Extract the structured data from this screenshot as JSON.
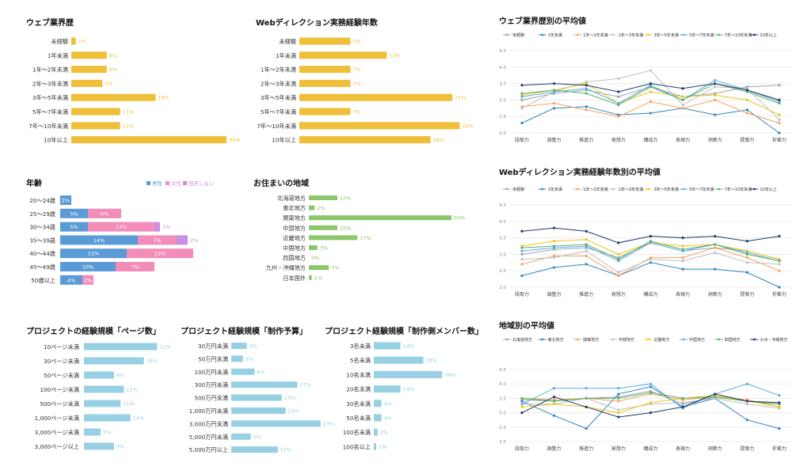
{
  "colors": {
    "gold": "#EFBF3A",
    "green": "#8CC66B",
    "lightblue": "#96D0E2",
    "blue": "#5B9BD5",
    "pink": "#F28CB9",
    "purple": "#C98FE3"
  },
  "left_charts": [
    {
      "id": "web-exp",
      "title": "ウェブ業界歴",
      "color": "#EFBF3A",
      "chart_data": {
        "type": "bar",
        "categories": [
          "未経験",
          "1年未満",
          "1年〜2年未満",
          "2年〜3年未満",
          "3年〜5年未満",
          "5年〜7年未満",
          "7年〜10年未満",
          "10年以上"
        ],
        "values": [
          1,
          8,
          8,
          7,
          19,
          11,
          11,
          35
        ]
      }
    },
    {
      "id": "webdir-exp",
      "title": "Webディレクション実務経験年数",
      "color": "#EFBF3A",
      "chart_data": {
        "type": "bar",
        "categories": [
          "未経験",
          "1年未満",
          "1年〜2年未満",
          "2年〜3年未満",
          "3年〜5年未満",
          "5年〜7年未満",
          "7年〜10年未満",
          "10年以上"
        ],
        "values": [
          7,
          12,
          7,
          7,
          21,
          7,
          22,
          18
        ]
      }
    },
    {
      "id": "region",
      "title": "お住まいの地域",
      "color": "#8CC66B",
      "chart_data": {
        "type": "bar",
        "categories": [
          "北海道地方",
          "東北地方",
          "関東地方",
          "中部地方",
          "近畿地方",
          "中国地方",
          "四国地方",
          "九州・沖縄地方",
          "日本国外"
        ],
        "values": [
          10,
          2,
          50,
          10,
          17,
          3,
          0,
          7,
          1
        ]
      }
    },
    {
      "id": "pages",
      "title": "プロジェクトの経験規模「ページ数」",
      "color": "#96D0E2",
      "chart_data": {
        "type": "bar",
        "categories": [
          "10ページ未満",
          "30ページ未満",
          "50ページ未満",
          "100ページ未満",
          "500ページ未満",
          "1,000ページ未満",
          "3,000ページ未満",
          "3,000ページ以上"
        ],
        "values": [
          22,
          18,
          9,
          12,
          11,
          14,
          5,
          9
        ]
      }
    },
    {
      "id": "budget",
      "title": "プロジェクト経験規模「制作予算」",
      "color": "#96D0E2",
      "chart_data": {
        "type": "bar",
        "categories": [
          "30万円未満",
          "50万円未満",
          "100万円未満",
          "300万円未満",
          "500万円未満",
          "1,000万円未満",
          "3,000万円未満",
          "5,000万円未満",
          "5,000万円以上"
        ],
        "values": [
          4,
          3,
          6,
          17,
          13,
          14,
          23,
          5,
          12
        ]
      }
    },
    {
      "id": "members",
      "title": "プロジェクト経験規模「制作側メンバー数」",
      "color": "#96D0E2",
      "chart_data": {
        "type": "bar",
        "categories": [
          "3名未満",
          "5名未満",
          "10名未満",
          "20名未満",
          "30名未満",
          "50名未満",
          "100名未満",
          "100名以上"
        ],
        "values": [
          14,
          26,
          36,
          14,
          4,
          4,
          2,
          1
        ]
      }
    }
  ],
  "age_chart": {
    "title": "年齢",
    "legend": [
      "男性",
      "女性",
      "回答しない"
    ],
    "legend_colors": [
      "#5B9BD5",
      "#F28CB9",
      "#C98FE3"
    ],
    "chart_data": {
      "type": "bar",
      "stacked": true,
      "categories": [
        "20〜24歳",
        "25〜29歳",
        "30〜34歳",
        "35〜39歳",
        "40〜44歳",
        "45〜49歳",
        "50歳以上"
      ],
      "series": [
        {
          "name": "男性",
          "values": [
            2,
            5,
            5,
            14,
            12,
            10,
            4
          ]
        },
        {
          "name": "女性",
          "values": [
            0,
            6,
            12,
            7,
            12,
            7,
            2
          ]
        },
        {
          "name": "回答しない",
          "values": [
            0,
            0,
            1,
            2,
            0,
            0,
            0
          ]
        }
      ]
    }
  },
  "line_charts": [
    {
      "id": "avg-web",
      "title": "ウェブ業界歴別の平均値",
      "chart_data": {
        "type": "line",
        "categories": [
          "段取力",
          "調整力",
          "推進力",
          "発想力",
          "構成力",
          "表現力",
          "洞察力",
          "提案力",
          "折衝力"
        ],
        "ylim": [
          2.0,
          4.5
        ],
        "yticks": [
          "4.5",
          "4.0",
          "3.5",
          "3.0",
          "2.5",
          "2.0"
        ],
        "series": [
          {
            "name": "未経験",
            "color": "#9CA3AF",
            "values": [
              3.0,
              3.2,
              3.3,
              3.1,
              3.4,
              3.1,
              3.2,
              3.4,
              3.45
            ]
          },
          {
            "name": "1年未満",
            "color": "#2E86C1",
            "values": [
              2.3,
              2.75,
              2.8,
              2.55,
              2.6,
              2.75,
              2.55,
              2.7,
              2.0
            ]
          },
          {
            "name": "1年〜2年未満",
            "color": "#F5A25D",
            "values": [
              2.8,
              2.9,
              2.7,
              2.5,
              2.95,
              2.75,
              3.0,
              2.6,
              2.3
            ]
          },
          {
            "name": "2年〜3年未満",
            "color": "#C0C0C0",
            "values": [
              2.75,
              3.25,
              3.55,
              3.65,
              3.9,
              2.85,
              3.4,
              3.35,
              2.4
            ]
          },
          {
            "name": "3年〜5年未満",
            "color": "#F0C419",
            "values": [
              3.15,
              3.3,
              3.5,
              2.9,
              3.25,
              3.1,
              3.15,
              3.0,
              2.55
            ]
          },
          {
            "name": "5年〜7年未満",
            "color": "#5DADE2",
            "values": [
              3.1,
              3.25,
              3.35,
              2.9,
              3.45,
              3.0,
              3.6,
              3.3,
              2.95
            ]
          },
          {
            "name": "7年〜10年未満",
            "color": "#58B368",
            "values": [
              3.2,
              3.3,
              3.2,
              2.85,
              3.4,
              3.0,
              3.5,
              3.25,
              2.9
            ]
          },
          {
            "name": "10年以上",
            "color": "#1F3A68",
            "values": [
              3.45,
              3.5,
              3.45,
              3.25,
              3.5,
              3.35,
              3.5,
              3.3,
              3.0
            ]
          }
        ]
      }
    },
    {
      "id": "avg-webdir",
      "title": "Webディレクション実務経験年数別の平均値",
      "chart_data": {
        "type": "line",
        "categories": [
          "段取力",
          "調整力",
          "推進力",
          "発想力",
          "構成力",
          "表現力",
          "洞察力",
          "提案力",
          "折衝力"
        ],
        "ylim": [
          2.0,
          4.5
        ],
        "yticks": [
          "4.5",
          "4.0",
          "3.5",
          "3.0",
          "2.5",
          "2.0"
        ],
        "series": [
          {
            "name": "未経験",
            "color": "#9CA3AF",
            "values": [
              3.0,
              3.15,
              3.2,
              2.9,
              3.35,
              3.1,
              3.2,
              3.1,
              2.85
            ]
          },
          {
            "name": "1年未満",
            "color": "#2E86C1",
            "values": [
              2.35,
              2.6,
              2.7,
              2.35,
              2.75,
              2.55,
              2.55,
              2.45,
              2.0
            ]
          },
          {
            "name": "1年〜2年未満",
            "color": "#F5A25D",
            "values": [
              2.7,
              2.95,
              2.95,
              2.35,
              2.9,
              2.9,
              3.2,
              2.9,
              2.5
            ]
          },
          {
            "name": "2年〜3年未満",
            "color": "#C0C0C0",
            "values": [
              2.85,
              2.9,
              3.1,
              2.45,
              2.85,
              2.8,
              3.05,
              2.75,
              2.7
            ]
          },
          {
            "name": "3年〜5年未満",
            "color": "#F0C419",
            "values": [
              3.25,
              3.4,
              3.45,
              3.0,
              3.35,
              3.25,
              3.3,
              3.1,
              2.85
            ]
          },
          {
            "name": "5年〜7年未満",
            "color": "#5DADE2",
            "values": [
              3.1,
              3.2,
              3.25,
              2.8,
              3.35,
              3.1,
              3.3,
              3.05,
              2.8
            ]
          },
          {
            "name": "7年〜10年未満",
            "color": "#58B368",
            "values": [
              3.2,
              3.25,
              3.3,
              2.85,
              3.4,
              3.15,
              3.3,
              3.0,
              2.8
            ]
          },
          {
            "name": "10年以上",
            "color": "#1F3A68",
            "values": [
              3.7,
              3.8,
              3.7,
              3.35,
              3.55,
              3.5,
              3.55,
              3.4,
              3.55
            ]
          }
        ]
      }
    },
    {
      "id": "avg-region",
      "title": "地域別の平均値",
      "chart_data": {
        "type": "line",
        "categories": [
          "段取力",
          "調整力",
          "推進力",
          "発想力",
          "構成力",
          "表現力",
          "洞察力",
          "提案力",
          "折衝力"
        ],
        "ylim": [
          2.0,
          4.5
        ],
        "yticks": [
          "4.5",
          "4.0",
          "3.5",
          "3.0",
          "2.5",
          "2.0"
        ],
        "series": [
          {
            "name": "北海道地方",
            "color": "#9CA3AF",
            "values": [
              3.45,
              3.4,
              3.5,
              3.55,
              3.75,
              3.3,
              3.55,
              3.4,
              3.3
            ]
          },
          {
            "name": "東北地方",
            "color": "#2E86C1",
            "values": [
              3.4,
              2.9,
              2.45,
              3.65,
              3.9,
              3.2,
              3.5,
              2.75,
              2.45
            ]
          },
          {
            "name": "関東地方",
            "color": "#F5A25D",
            "values": [
              3.5,
              3.45,
              3.5,
              3.4,
              3.65,
              3.45,
              3.55,
              3.45,
              3.2
            ]
          },
          {
            "name": "中部地方",
            "color": "#C0C0C0",
            "values": [
              3.3,
              3.3,
              3.5,
              3.1,
              3.3,
              3.35,
              3.5,
              3.3,
              3.15
            ]
          },
          {
            "name": "近畿地方",
            "color": "#F0C419",
            "values": [
              3.2,
              3.3,
              3.2,
              3.0,
              3.35,
              3.5,
              3.6,
              3.4,
              3.2
            ]
          },
          {
            "name": "中国地方",
            "color": "#5DADE2",
            "values": [
              3.3,
              3.85,
              3.85,
              3.85,
              4.0,
              3.15,
              3.65,
              4.0,
              3.6
            ]
          },
          {
            "name": "四国地方",
            "color": "#58B368",
            "values": [
              3.5,
              3.4,
              3.5,
              3.5,
              3.7,
              3.5,
              3.55,
              3.4,
              3.3
            ]
          },
          {
            "name": "九州・沖縄地方",
            "color": "#1F3A68",
            "values": [
              3.0,
              3.55,
              3.2,
              2.85,
              3.0,
              3.2,
              3.65,
              3.4,
              3.35
            ]
          }
        ]
      }
    }
  ]
}
